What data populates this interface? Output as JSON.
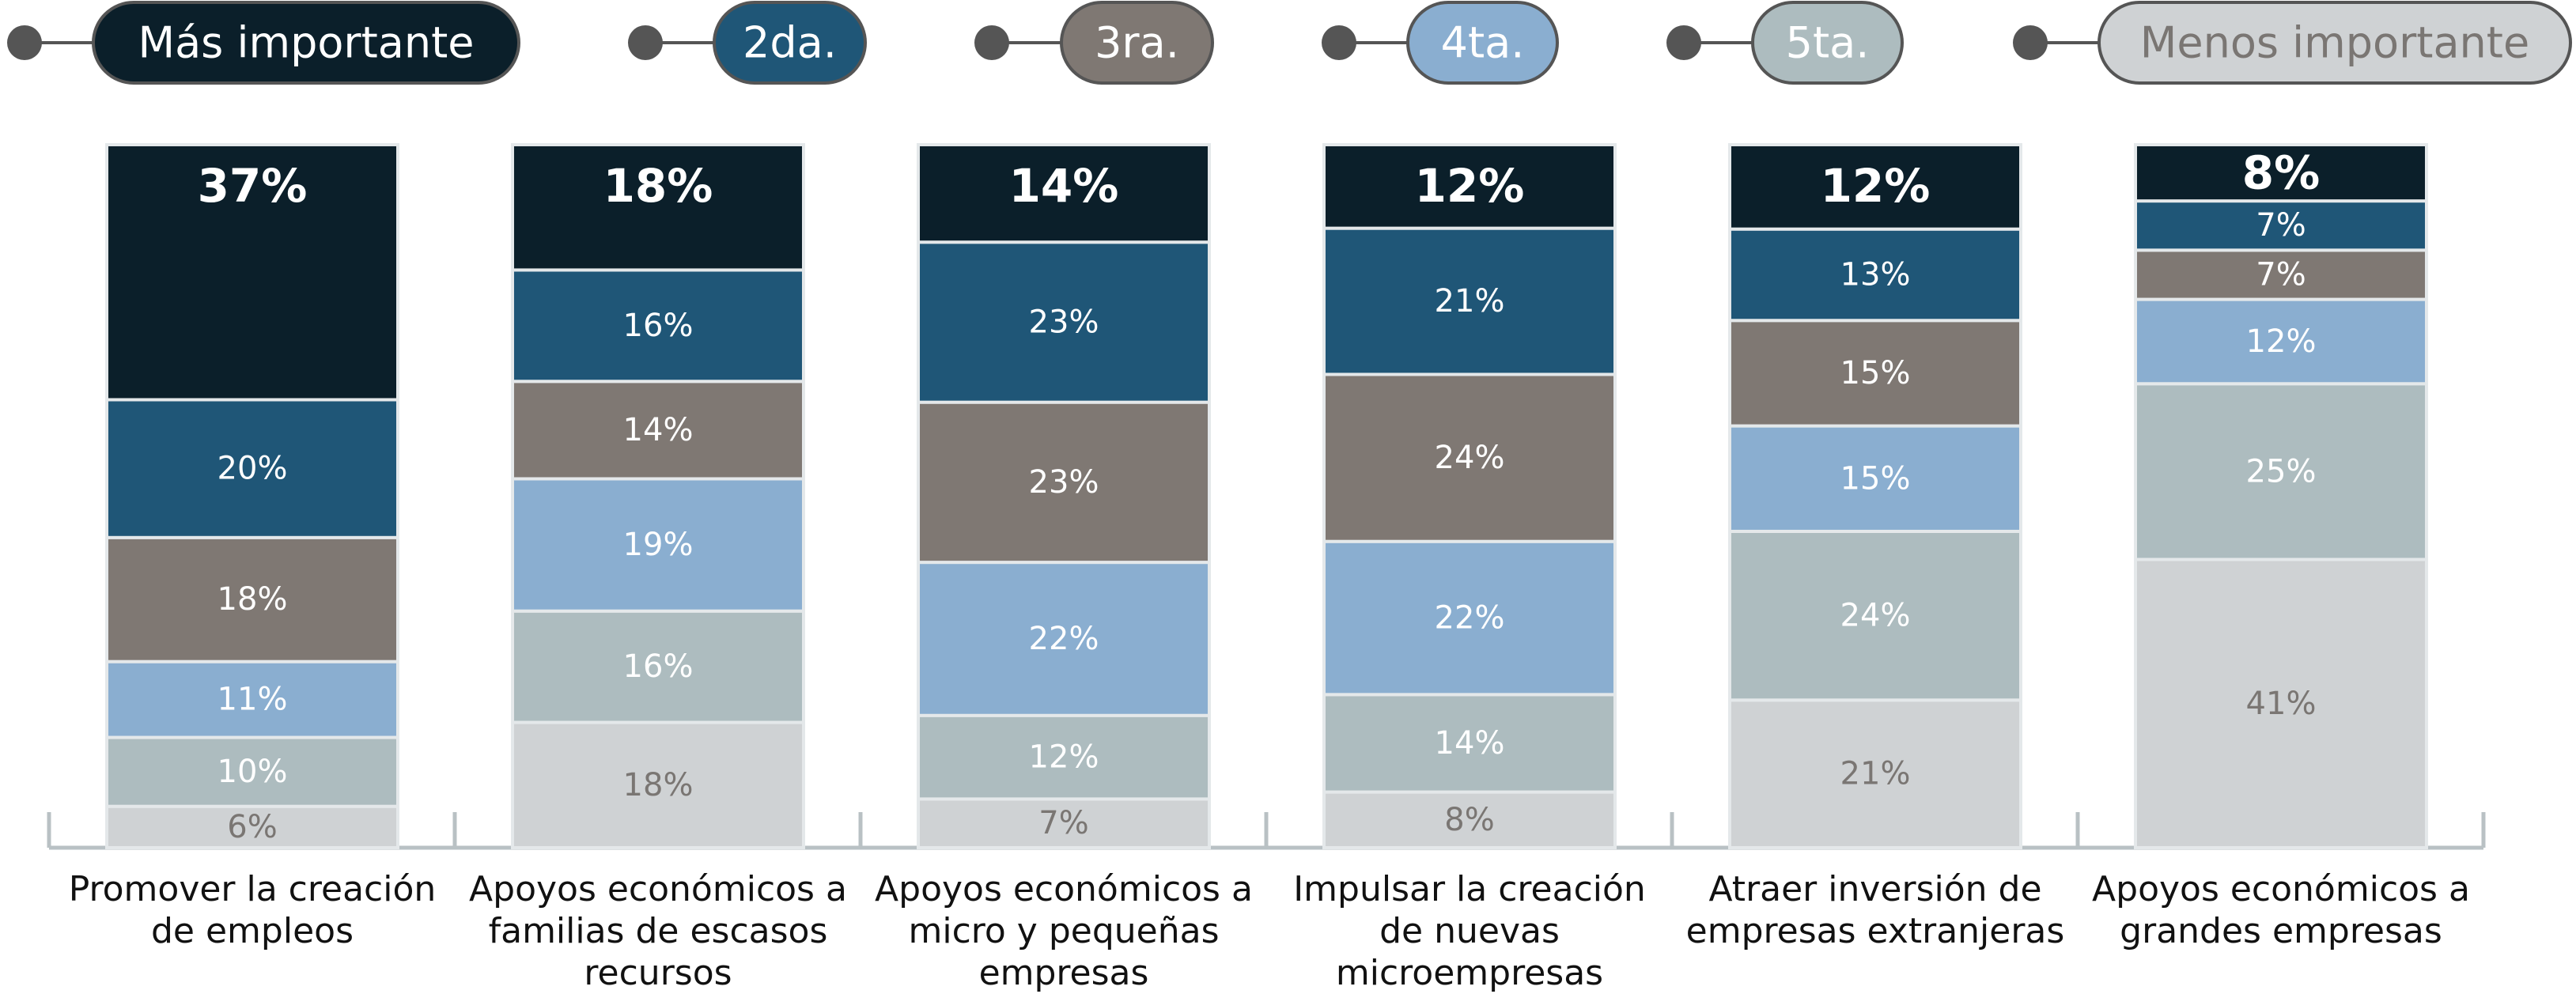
{
  "chart_data": {
    "type": "stacked_bar",
    "categories": [
      "Promover la creación de empleos",
      "Apoyos económicos a familias de escasos recursos",
      "Apoyos económicos a micro y pequeñas empresas",
      "Impulsar la creación de nuevas microempresas",
      "Atraer inversión de empresas extranjeras",
      "Apoyos económicos a grandes empresas"
    ],
    "series": [
      {
        "name": "Más importante",
        "color": "#0b1f2a",
        "values": [
          37,
          18,
          14,
          12,
          12,
          8
        ],
        "value_labels": [
          "37%",
          "18%",
          "14%",
          "12%",
          "12%",
          "8%"
        ]
      },
      {
        "name": "2da.",
        "color": "#1f5677",
        "values": [
          20,
          16,
          23,
          21,
          13,
          7
        ],
        "value_labels": [
          "20%",
          "16%",
          "23%",
          "21%",
          "13%",
          "7%"
        ]
      },
      {
        "name": "3ra.",
        "color": "#7f7873",
        "values": [
          18,
          14,
          23,
          24,
          15,
          7
        ],
        "value_labels": [
          "18%",
          "14%",
          "23%",
          "24%",
          "15%",
          "7%"
        ]
      },
      {
        "name": "4ta.",
        "color": "#8aaed0",
        "values": [
          11,
          19,
          22,
          22,
          15,
          12
        ],
        "value_labels": [
          "11%",
          "19%",
          "22%",
          "22%",
          "15%",
          "12%"
        ]
      },
      {
        "name": "5ta.",
        "color": "#adbcbf",
        "values": [
          10,
          16,
          12,
          14,
          24,
          25
        ],
        "value_labels": [
          "10%",
          "16%",
          "12%",
          "14%",
          "24%",
          "25%"
        ]
      },
      {
        "name": "Menos importante",
        "color": "#cfd2d4",
        "values": [
          6,
          18,
          7,
          8,
          21,
          41
        ],
        "value_labels": [
          "6%",
          "18%",
          "7%",
          "8%",
          "21%",
          "41%"
        ]
      }
    ]
  }
}
